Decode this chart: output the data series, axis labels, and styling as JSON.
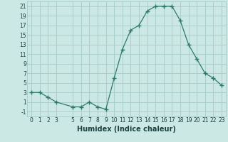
{
  "x": [
    0,
    1,
    2,
    3,
    5,
    6,
    7,
    8,
    9,
    10,
    11,
    12,
    13,
    14,
    15,
    16,
    17,
    18,
    19,
    20,
    21,
    22,
    23
  ],
  "y": [
    3,
    3,
    2,
    1,
    0,
    0,
    1,
    0,
    -0.5,
    6,
    12,
    16,
    17,
    20,
    21,
    21,
    21,
    18,
    13,
    10,
    7,
    6,
    4.5
  ],
  "xlabel": "Humidex (Indice chaleur)",
  "xlim": [
    -0.5,
    23.5
  ],
  "ylim": [
    -2,
    22
  ],
  "yticks": [
    -1,
    1,
    3,
    5,
    7,
    9,
    11,
    13,
    15,
    17,
    19,
    21
  ],
  "xticks": [
    0,
    1,
    2,
    3,
    5,
    6,
    7,
    8,
    9,
    10,
    11,
    12,
    13,
    14,
    15,
    16,
    17,
    18,
    19,
    20,
    21,
    22,
    23
  ],
  "line_color": "#2d7a6a",
  "marker": "+",
  "marker_size": 4,
  "bg_color": "#cce8e4",
  "grid_color": "#aacfcb",
  "font_color": "#1a4040",
  "xlabel_fontsize": 7,
  "tick_fontsize": 5.5
}
